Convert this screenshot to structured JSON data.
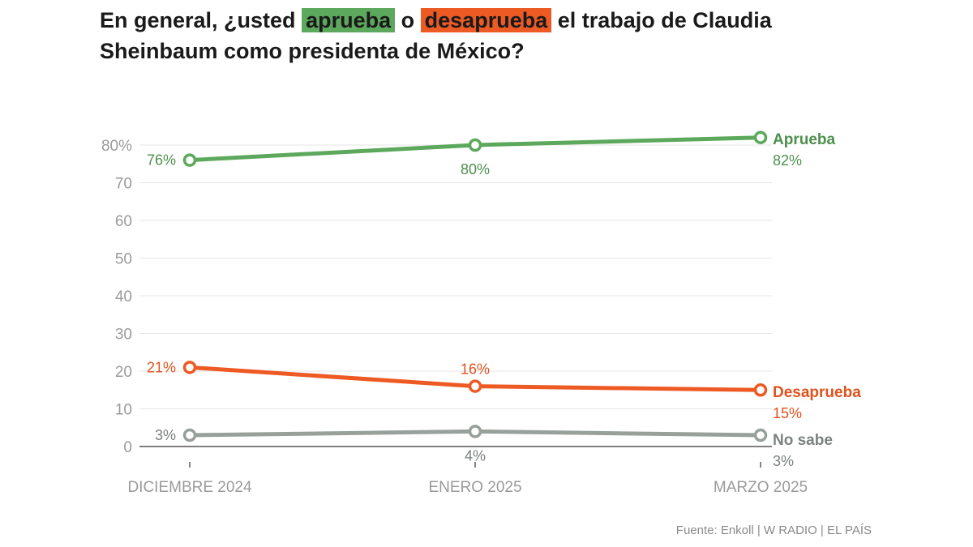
{
  "title": {
    "part1": "En general, ¿usted",
    "approve_word": "aprueba",
    "part2": "o",
    "disapprove_word": "desaprueba",
    "part3": "el trabajo de Claudia Sheinbaum como presidenta de México?"
  },
  "colors": {
    "approve": "#5ca85c",
    "disapprove": "#ee5a24",
    "unknown": "#98a09b",
    "approve_text": "#4e8f4e",
    "disapprove_text": "#e0521d",
    "unknown_text": "#7b817e",
    "axis_text": "#9a9a9a",
    "grid": "#e6e6e6"
  },
  "chart_data": {
    "type": "line",
    "categories": [
      "DICIEMBRE 2024",
      "ENERO 2025",
      "MARZO 2025"
    ],
    "ylim": [
      0,
      80
    ],
    "yticks": [
      0,
      10,
      20,
      30,
      40,
      50,
      60,
      70,
      80
    ],
    "ytick_labels": [
      "0",
      "10",
      "20",
      "30",
      "40",
      "50",
      "60",
      "70",
      "80%"
    ],
    "grid": true,
    "series": [
      {
        "name": "Aprueba",
        "values": [
          76,
          80,
          82
        ],
        "labels": [
          "76%",
          "80%",
          "82%"
        ],
        "color_key": "approve"
      },
      {
        "name": "Desaprueba",
        "values": [
          21,
          16,
          15
        ],
        "labels": [
          "21%",
          "16%",
          "15%"
        ],
        "color_key": "disapprove"
      },
      {
        "name": "No sabe",
        "values": [
          3,
          4,
          3
        ],
        "labels": [
          "3%",
          "4%",
          "3%"
        ],
        "color_key": "unknown"
      }
    ]
  },
  "source": "Fuente: Enkoll | W RADIO | EL PAÍS"
}
